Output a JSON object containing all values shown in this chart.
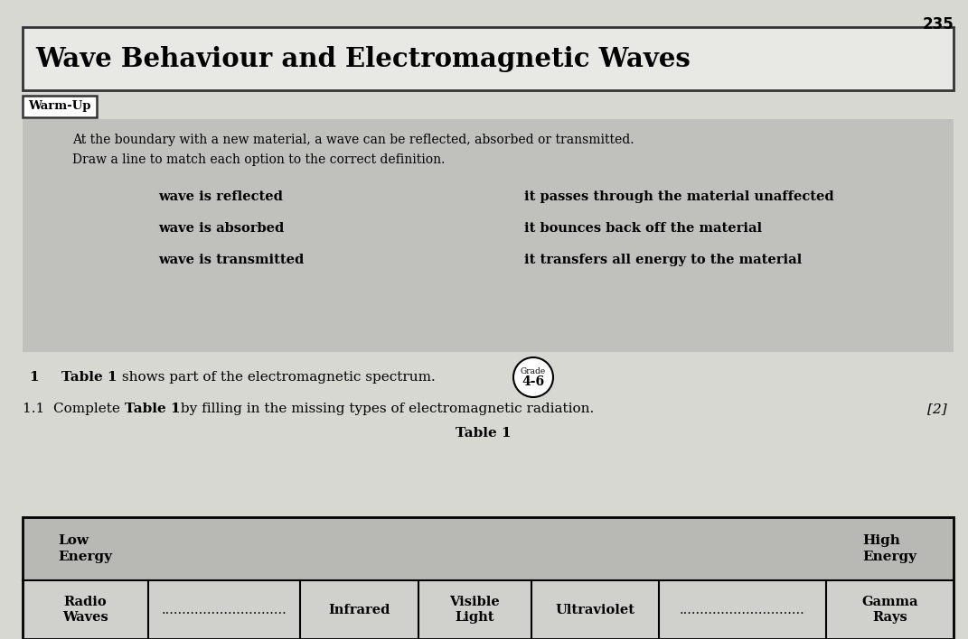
{
  "page_number": "235",
  "title": "Wave Behaviour and Electromagnetic Waves",
  "warmup_label": "Warm-Up",
  "intro_text_line1": "At the boundary with a new material, a wave can be reflected, absorbed or transmitted.",
  "intro_text_line2": "Draw a line to match each option to the correct definition.",
  "left_items": [
    "wave is reflected",
    "wave is absorbed",
    "wave is transmitted"
  ],
  "right_items": [
    "it passes through the material unaffected",
    "it bounces back off the material",
    "it transfers all energy to the material"
  ],
  "question_number": "1",
  "question_text_bold": "Table 1",
  "question_text_rest": " shows part of the electromagnetic spectrum.",
  "grade_top": "Grade",
  "grade_bottom": "4-6",
  "sub_q_prefix": "1.1  Complete ",
  "sub_q_bold": "Table 1",
  "sub_q_suffix": " by filling in the missing types of electromagnetic radiation.",
  "marks": "[2]",
  "table_title": "Table 1",
  "table_header_left": "Low\nEnergy",
  "table_header_right": "High\nEnergy",
  "table_row": [
    "Radio\nWaves",
    "..............................",
    "Infrared",
    "Visible\nLight",
    "Ultraviolet",
    "..............................",
    "Gamma\nRays"
  ],
  "table_row_bold": [
    true,
    false,
    true,
    true,
    true,
    false,
    true
  ],
  "page_bg": "#d8d8d2",
  "warmup_bg": "#c0c0bc",
  "table_header_bg": "#b8b8b4",
  "table_row_bg": "#d0d0cc",
  "title_bg": "#e8e8e4"
}
